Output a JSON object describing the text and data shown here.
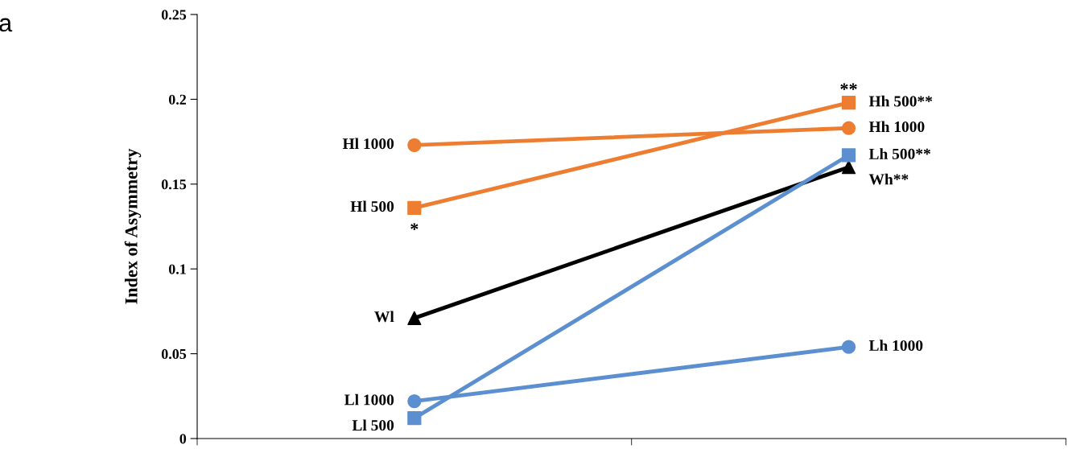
{
  "chart_data": {
    "type": "line",
    "ylabel": "Index of Asymmetry",
    "categories": [
      null,
      null
    ],
    "ylim": [
      0,
      0.25
    ],
    "yticks": [
      0,
      0.05,
      0.1,
      0.15,
      0.2,
      0.25
    ],
    "grid": false,
    "series": [
      {
        "color": "#ed7d31",
        "marker": "circle",
        "values": [
          0.173,
          0.183
        ],
        "value_labels": [
          "Hl 1000",
          "Hh 1000"
        ]
      },
      {
        "color": "#ed7d31",
        "marker": "square",
        "values": [
          0.136,
          0.198
        ],
        "value_labels": [
          "Hl 500",
          "Hh 500**"
        ]
      },
      {
        "color": "#000000",
        "marker": "triangle",
        "values": [
          0.071,
          0.16
        ],
        "value_labels": [
          "Wl",
          "Wh**"
        ]
      },
      {
        "color": "#5b8fd0",
        "marker": "circle",
        "values": [
          0.022,
          0.054
        ],
        "value_labels": [
          "Ll 1000",
          "Lh 1000"
        ]
      },
      {
        "color": "#5b8fd0",
        "marker": "square",
        "values": [
          0.012,
          0.167
        ],
        "value_labels": [
          "Ll 500",
          "Lh 500**"
        ]
      }
    ],
    "annotations": [
      "a",
      "*",
      "**"
    ]
  }
}
